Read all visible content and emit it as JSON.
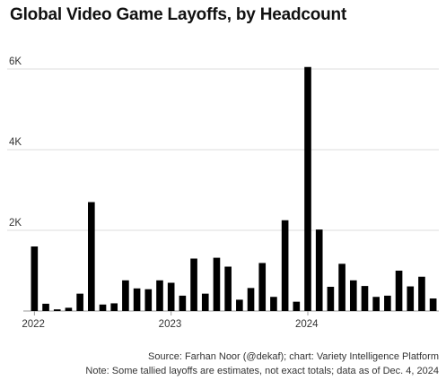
{
  "title": "Global Video Game Layoffs, by Headcount",
  "source": "Source: Farhan Noor (@dekaf); chart: Variety Intelligence Platform",
  "note": "Note: Some tallied layoffs are estimates, not exact totals; data as of Dec. 4, 2024",
  "colors": {
    "bar": "#000000",
    "grid": "#dddddd",
    "axis": "#999999"
  },
  "chart_data": {
    "type": "bar",
    "title": "Global Video Game Layoffs, by Headcount",
    "xlabel": "",
    "ylabel": "",
    "ylim": [
      0,
      6000
    ],
    "grid": true,
    "yticks": [
      {
        "value": 2000,
        "label": "2K"
      },
      {
        "value": 4000,
        "label": "4K"
      },
      {
        "value": 6000,
        "label": "6K"
      }
    ],
    "xtick_labels": [
      {
        "index": 0,
        "label": "2022"
      },
      {
        "index": 12,
        "label": "2023"
      },
      {
        "index": 24,
        "label": "2024"
      }
    ],
    "categories": [
      "2022-01",
      "2022-02",
      "2022-03",
      "2022-04",
      "2022-05",
      "2022-06",
      "2022-07",
      "2022-08",
      "2022-09",
      "2022-10",
      "2022-11",
      "2022-12",
      "2023-01",
      "2023-02",
      "2023-03",
      "2023-04",
      "2023-05",
      "2023-06",
      "2023-07",
      "2023-08",
      "2023-09",
      "2023-10",
      "2023-11",
      "2023-12",
      "2024-01",
      "2024-02",
      "2024-03",
      "2024-04",
      "2024-05",
      "2024-06",
      "2024-07",
      "2024-08",
      "2024-09",
      "2024-10",
      "2024-11",
      "2024-12"
    ],
    "values": [
      1600,
      180,
      40,
      80,
      430,
      2700,
      160,
      190,
      760,
      560,
      540,
      760,
      700,
      380,
      1300,
      430,
      1320,
      1100,
      280,
      570,
      1190,
      350,
      2250,
      230,
      6050,
      2020,
      600,
      1170,
      760,
      620,
      350,
      380,
      1000,
      610,
      850,
      310
    ]
  }
}
